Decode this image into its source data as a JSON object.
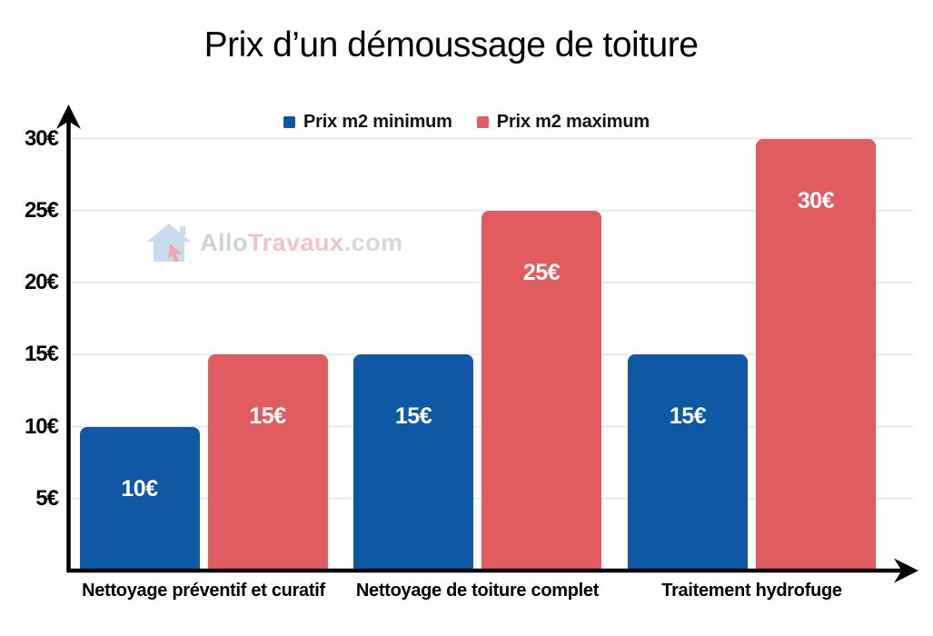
{
  "title": "Prix d’un démoussage de toiture",
  "watermark": {
    "prefix": "Allo",
    "brand": "Travaux",
    "suffix": ".com",
    "prefix_color": "#ccd1d9",
    "brand_color": "#f3bfc3",
    "suffix_color": "#d3d7de",
    "house_color": "#c7dbee",
    "cursor_color": "#e9a3a8"
  },
  "colors": {
    "min_series": "#0f58a5",
    "max_series": "#e05c61",
    "grid": "#e9e9ee",
    "axis": "#000000",
    "bar_label": "#ffffff",
    "legend_text": "#141414"
  },
  "chart_data": {
    "type": "bar",
    "title": "Prix d’un démoussage de toiture",
    "categories": [
      "Nettoyage préventif et curatif",
      "Nettoyage de toiture complet",
      "Traitement hydrofuge"
    ],
    "series": [
      {
        "name": "Prix m2 minimum",
        "color": "#0f58a5",
        "values": [
          10,
          15,
          15
        ],
        "labels": [
          "10€",
          "15€",
          "15€"
        ]
      },
      {
        "name": "Prix m2 maximum",
        "color": "#e05c61",
        "values": [
          15,
          25,
          30
        ],
        "labels": [
          "15€",
          "25€",
          "30€"
        ]
      }
    ],
    "xlabel": "",
    "ylabel": "",
    "y_ticks": [
      "5€",
      "10€",
      "15€",
      "20€",
      "25€",
      "30€"
    ],
    "y_tick_values": [
      5,
      10,
      15,
      20,
      25,
      30
    ],
    "ylim": [
      0,
      32
    ],
    "value_suffix": "€",
    "grid": "horizontal",
    "legend_position": "top-center",
    "bar_label_position": "inside-top"
  }
}
